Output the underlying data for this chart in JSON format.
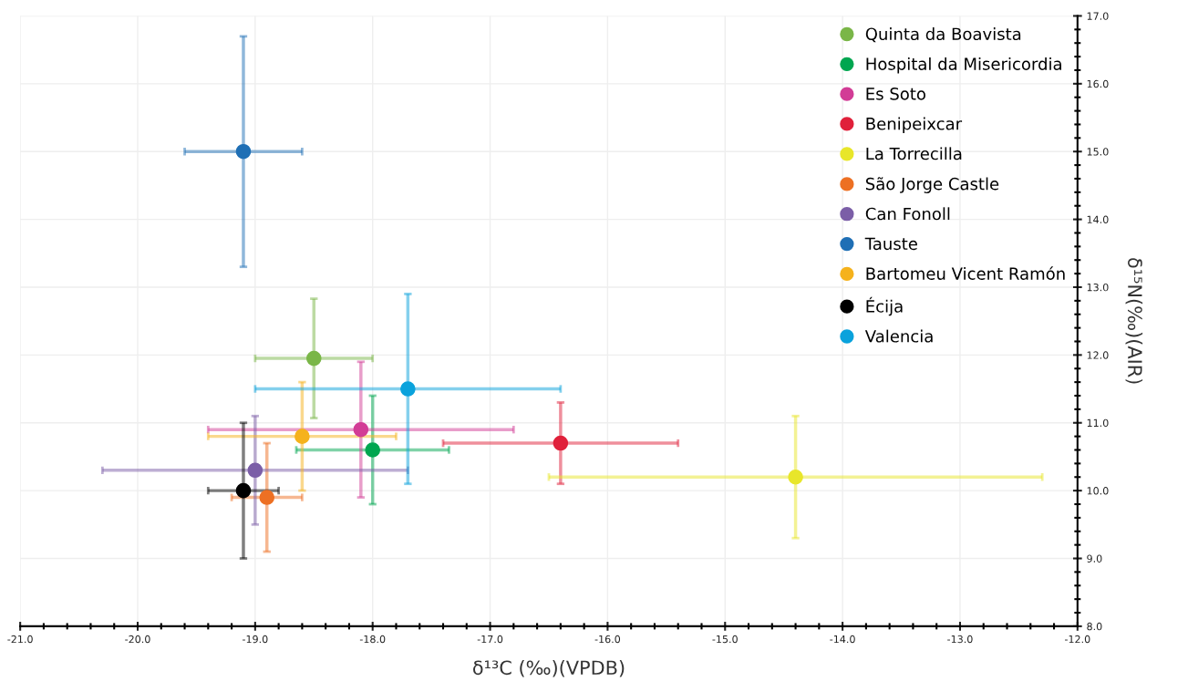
{
  "chart_data": {
    "type": "scatter",
    "xlabel": "δ¹³C (‰)(VPDB)",
    "ylabel": "δ¹⁵N(‰)(AIR)",
    "xlim": [
      -21.0,
      -12.0
    ],
    "ylim": [
      8.0,
      17.0
    ],
    "xticks": [
      {
        "value": -21.0,
        "label": "-21.0"
      },
      {
        "value": -20.0,
        "label": "-20.0"
      },
      {
        "value": -19.0,
        "label": "-19.0"
      },
      {
        "value": -18.0,
        "label": "-18.0"
      },
      {
        "value": -17.0,
        "label": "-17.0"
      },
      {
        "value": -16.0,
        "label": "-16.0"
      },
      {
        "value": -15.0,
        "label": "-15.0"
      },
      {
        "value": -14.0,
        "label": "-14.0"
      },
      {
        "value": -13.0,
        "label": "-13.0"
      },
      {
        "value": -12.0,
        "label": "-12.0"
      }
    ],
    "yticks": [
      {
        "value": 8.0,
        "label": "8.0"
      },
      {
        "value": 9.0,
        "label": "9.0"
      },
      {
        "value": 10.0,
        "label": "10.0"
      },
      {
        "value": 11.0,
        "label": "11.0"
      },
      {
        "value": 12.0,
        "label": "12.0"
      },
      {
        "value": 13.0,
        "label": "13.0"
      },
      {
        "value": 14.0,
        "label": "14.0"
      },
      {
        "value": 15.0,
        "label": "15.0"
      },
      {
        "value": 16.0,
        "label": "16.0"
      },
      {
        "value": 17.0,
        "label": "17.0"
      }
    ],
    "grid": true,
    "legend": "top right",
    "marker": "circle",
    "series": [
      {
        "name": "Quinta da Boavista",
        "color": "#7ab648",
        "x": [
          -18.5
        ],
        "values": [
          11.95
        ],
        "xerrors": [
          0.5
        ],
        "errors": [
          0.88
        ]
      },
      {
        "name": "Hospital da Misericordia",
        "color": "#00a650",
        "x": [
          -18.0
        ],
        "values": [
          10.6
        ],
        "xerrors": [
          0.65
        ],
        "errors": [
          0.8
        ]
      },
      {
        "name": "Es Soto",
        "color": "#d23c96",
        "x": [
          -18.1
        ],
        "values": [
          10.9
        ],
        "xerrors": [
          1.3
        ],
        "errors": [
          1.0
        ]
      },
      {
        "name": "Benipeixcar",
        "color": "#e0203a",
        "x": [
          -16.4
        ],
        "values": [
          10.7
        ],
        "xerrors": [
          1.0
        ],
        "errors": [
          0.6
        ]
      },
      {
        "name": "La Torrecilla",
        "color": "#e8e62a",
        "x": [
          -14.4
        ],
        "values": [
          10.2
        ],
        "xerrors": [
          2.1
        ],
        "errors": [
          0.9
        ]
      },
      {
        "name": "São Jorge Castle",
        "color": "#ed7023",
        "x": [
          -18.9
        ],
        "values": [
          9.9
        ],
        "xerrors": [
          0.3
        ],
        "errors": [
          0.8
        ]
      },
      {
        "name": "Can Fonoll",
        "color": "#7b5ea7",
        "x": [
          -19.0
        ],
        "values": [
          10.3
        ],
        "xerrors": [
          1.3
        ],
        "errors": [
          0.8
        ]
      },
      {
        "name": "Tauste",
        "color": "#1f6fb5",
        "x": [
          -19.1
        ],
        "values": [
          15.0
        ],
        "xerrors": [
          0.5
        ],
        "errors": [
          1.7
        ]
      },
      {
        "name": "Bartomeu Vicent Ramón",
        "color": "#f5b21c",
        "x": [
          -18.6
        ],
        "values": [
          10.8
        ],
        "xerrors": [
          0.8
        ],
        "errors": [
          0.8
        ]
      },
      {
        "name": "Écija",
        "color": "#000000",
        "x": [
          -19.1
        ],
        "values": [
          10.0
        ],
        "xerrors": [
          0.3
        ],
        "errors": [
          1.0
        ]
      },
      {
        "name": "Valencia",
        "color": "#0aa2dc",
        "x": [
          -17.7
        ],
        "values": [
          11.5
        ],
        "xerrors": [
          1.3
        ],
        "errors": [
          1.4
        ]
      }
    ]
  }
}
